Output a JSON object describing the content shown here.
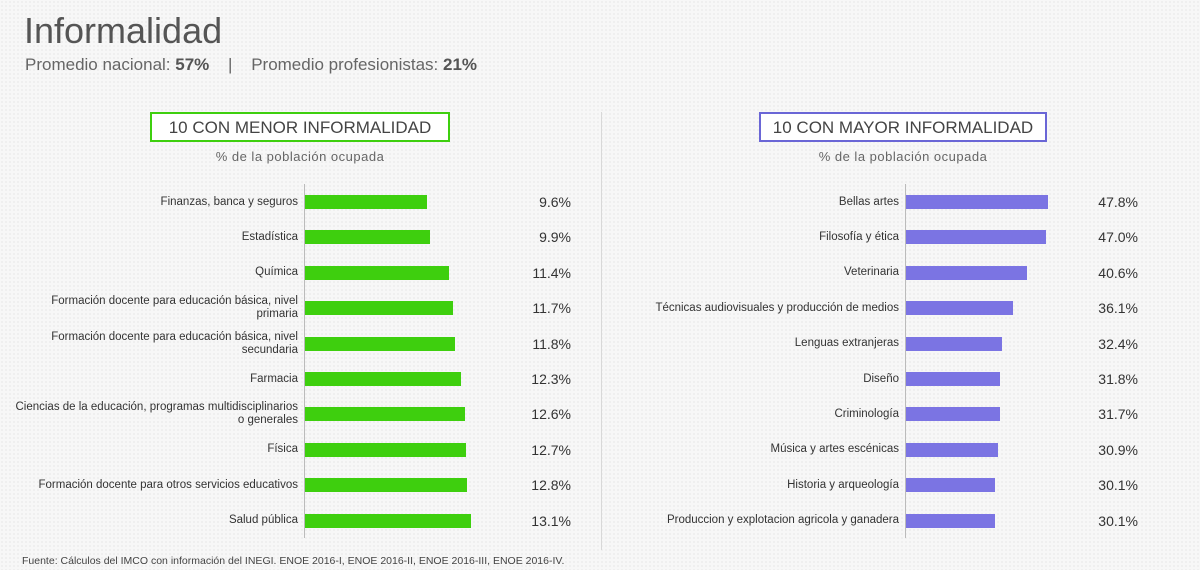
{
  "header": {
    "title": "Informalidad",
    "national_label": "Promedio nacional:",
    "national_value": "57%",
    "separator": "|",
    "prof_label": "Promedio profesionistas:",
    "prof_value": "21%"
  },
  "colors": {
    "low": "#3ecf0e",
    "high": "#7b74e3",
    "low_border": "#3ecf0e",
    "high_border": "#6a66d6"
  },
  "chart_data": [
    {
      "type": "bar",
      "orientation": "horizontal",
      "title": "10 CON MENOR INFORMALIDAD",
      "subtitle": "% de la población ocupada",
      "categories": [
        "Finanzas, banca y seguros",
        "Estadística",
        "Química",
        "Formación docente para educación básica, nivel primaria",
        "Formación docente para educación básica, nivel secundaria",
        "Farmacia",
        "Ciencias de la educación, programas multidisciplinarios o generales",
        "Física",
        "Formación docente para otros servicios educativos",
        "Salud pública"
      ],
      "values": [
        9.6,
        9.9,
        11.4,
        11.7,
        11.8,
        12.3,
        12.6,
        12.7,
        12.8,
        13.1
      ],
      "labels": [
        "9.6%",
        "9.9%",
        "11.4%",
        "11.7%",
        "11.8%",
        "12.3%",
        "12.6%",
        "12.7%",
        "12.8%",
        "13.1%"
      ],
      "xlim": [
        0,
        13.1
      ]
    },
    {
      "type": "bar",
      "orientation": "horizontal",
      "title": "10 CON MAYOR INFORMALIDAD",
      "subtitle": "% de la población ocupada",
      "categories": [
        "Bellas artes",
        "Filosofía y ética",
        "Veterinaria",
        "Técnicas audiovisuales y producción de medios",
        "Lenguas extranjeras",
        "Diseño",
        "Criminología",
        "Música y artes escénicas",
        "Historia y arqueología",
        "Produccion y explotacion agricola y ganadera"
      ],
      "values": [
        47.8,
        47.0,
        40.6,
        36.1,
        32.4,
        31.8,
        31.7,
        30.9,
        30.1,
        30.1
      ],
      "labels": [
        "47.8%",
        "47.0%",
        "40.6%",
        "36.1%",
        "32.4%",
        "31.8%",
        "31.7%",
        "30.9%",
        "30.1%",
        "30.1%"
      ],
      "xlim": [
        0,
        47.8
      ]
    }
  ],
  "source": "Fuente: Cálculos del IMCO con información del INEGI. ENOE 2016-I, ENOE 2016-II, ENOE 2016-III, ENOE 2016-IV."
}
